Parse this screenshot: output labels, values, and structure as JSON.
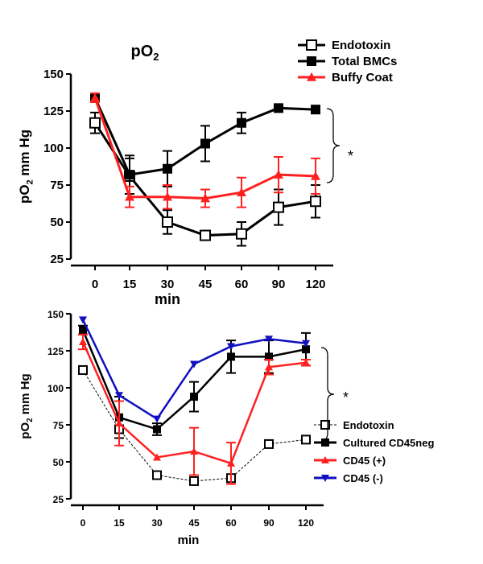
{
  "chart_data": [
    {
      "type": "line",
      "title": "pO2",
      "xlabel": "min",
      "ylabel": "pO2 mm Hg",
      "categories": [
        "0",
        "15",
        "30",
        "45",
        "60",
        "90",
        "120"
      ],
      "yticks": [
        "25",
        "50",
        "75",
        "100",
        "125",
        "150"
      ],
      "ylim": [
        25,
        150
      ],
      "annotation": "*",
      "legend_position": "top-right",
      "series": [
        {
          "name": "Endotoxin",
          "color": "#000000",
          "marker": "open-square",
          "dashed": false,
          "values": [
            117,
            81,
            50,
            41,
            42,
            60,
            64
          ],
          "errors": [
            7,
            12,
            8,
            2,
            8,
            12,
            11
          ]
        },
        {
          "name": "Total BMCs",
          "color": "#000000",
          "marker": "square",
          "dashed": false,
          "values": [
            134,
            82,
            86,
            103,
            117,
            127,
            126
          ],
          "errors": [
            2,
            13,
            12,
            12,
            7,
            2,
            1
          ]
        },
        {
          "name": "Buffy Coat",
          "color": "#ff2020",
          "marker": "triangle",
          "dashed": false,
          "values": [
            134,
            67,
            67,
            66,
            70,
            82,
            81
          ],
          "errors": [
            3,
            7,
            8,
            6,
            10,
            12,
            12
          ]
        }
      ]
    },
    {
      "type": "line",
      "title": "",
      "xlabel": "min",
      "ylabel": "pO2 mm Hg",
      "categories": [
        "0",
        "15",
        "30",
        "45",
        "60",
        "90",
        "120"
      ],
      "yticks": [
        "25",
        "50",
        "75",
        "100",
        "125",
        "150"
      ],
      "ylim": [
        25,
        150
      ],
      "annotation": "*",
      "legend_position": "right",
      "series": [
        {
          "name": "Endotoxin",
          "color": "#000000",
          "marker": "open-square",
          "dashed": true,
          "values": [
            112,
            72,
            41,
            37,
            39,
            62,
            65
          ],
          "errors": [
            0,
            0,
            0,
            0,
            0,
            0,
            0
          ]
        },
        {
          "name": "Cultured CD45neg",
          "color": "#000000",
          "marker": "square",
          "dashed": false,
          "values": [
            139,
            80,
            72,
            94,
            121,
            121,
            126
          ],
          "errors": [
            3,
            14,
            4,
            10,
            11,
            11,
            11
          ]
        },
        {
          "name": "CD45 (+)",
          "color": "#ff2020",
          "marker": "triangle",
          "dashed": false,
          "values": [
            131,
            76,
            53,
            57,
            49,
            114,
            117
          ],
          "errors": [
            5,
            15,
            0,
            16,
            14,
            5,
            2
          ]
        },
        {
          "name": "CD45 (-)",
          "color": "#1010c0",
          "marker": "triangle-down",
          "dashed": false,
          "values": [
            146,
            95,
            79,
            116,
            128,
            133,
            130
          ],
          "errors": [
            0,
            0,
            0,
            0,
            0,
            0,
            0
          ]
        }
      ]
    }
  ]
}
